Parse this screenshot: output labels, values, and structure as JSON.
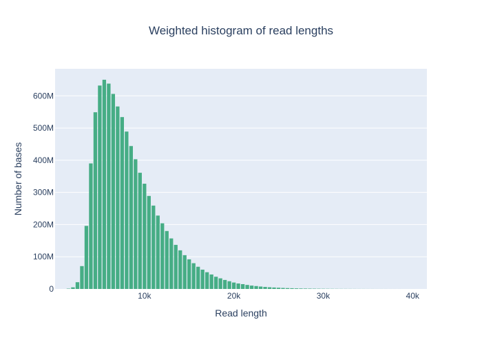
{
  "chart_data": {
    "type": "bar",
    "title": "Weighted histogram of read lengths",
    "xlabel": "Read length",
    "ylabel": "Number of bases",
    "bar_color": "#46ad85",
    "plot_bg": "#e5ecf6",
    "grid_color": "#ffffff",
    "text_color": "#2a3f5f",
    "grid": true,
    "bin_width": 500,
    "xlim": [
      0,
      41600
    ],
    "ylim": [
      0,
      684000000
    ],
    "x_ticks": [
      {
        "value": 10000,
        "label": "10k"
      },
      {
        "value": 20000,
        "label": "20k"
      },
      {
        "value": 30000,
        "label": "30k"
      },
      {
        "value": 40000,
        "label": "40k"
      }
    ],
    "y_ticks": [
      {
        "value": 0,
        "label": "0"
      },
      {
        "value": 100000000,
        "label": "100M"
      },
      {
        "value": 200000000,
        "label": "200M"
      },
      {
        "value": 300000000,
        "label": "300M"
      },
      {
        "value": 400000000,
        "label": "400M"
      },
      {
        "value": 500000000,
        "label": "500M"
      },
      {
        "value": 600000000,
        "label": "600M"
      }
    ],
    "x": [
      1500,
      2000,
      2500,
      3000,
      3500,
      4000,
      4500,
      5000,
      5500,
      6000,
      6500,
      7000,
      7500,
      8000,
      8500,
      9000,
      9500,
      10000,
      10500,
      11000,
      11500,
      12000,
      12500,
      13000,
      13500,
      14000,
      14500,
      15000,
      15500,
      16000,
      16500,
      17000,
      17500,
      18000,
      18500,
      19000,
      19500,
      20000,
      20500,
      21000,
      21500,
      22000,
      22500,
      23000,
      23500,
      24000,
      24500,
      25000,
      25500,
      26000,
      26500,
      27000,
      27500,
      28000,
      28500,
      29000,
      29500,
      30000,
      30500,
      31000,
      31500,
      32000,
      32500,
      33000,
      33500,
      34000,
      34500,
      35000,
      35500,
      36000,
      36500,
      37000,
      37500,
      38000,
      38500,
      39000,
      39500,
      40000
    ],
    "values": [
      1000000,
      5000000,
      21000000,
      71000000,
      196000000,
      390000000,
      549000000,
      632000000,
      650000000,
      638000000,
      606000000,
      567000000,
      534000000,
      489000000,
      444000000,
      403000000,
      361000000,
      327000000,
      289000000,
      259000000,
      228000000,
      204000000,
      180000000,
      157000000,
      137000000,
      120000000,
      105000000,
      92000000,
      80000000,
      69000000,
      60000000,
      52000000,
      45000000,
      38000000,
      33000000,
      28000000,
      24000000,
      20000000,
      17000000,
      15000000,
      12500000,
      10500000,
      9000000,
      7500000,
      6300000,
      5300000,
      4500000,
      3800000,
      3200000,
      2700000,
      2300000,
      1900000,
      1600000,
      1400000,
      1200000,
      1000000,
      850000,
      720000,
      600000,
      500000,
      420000,
      350000,
      300000,
      250000,
      210000,
      180000,
      150000,
      130000,
      110000,
      90000,
      75000,
      63000,
      53000,
      45000,
      38000,
      32000,
      27000,
      22000
    ]
  }
}
